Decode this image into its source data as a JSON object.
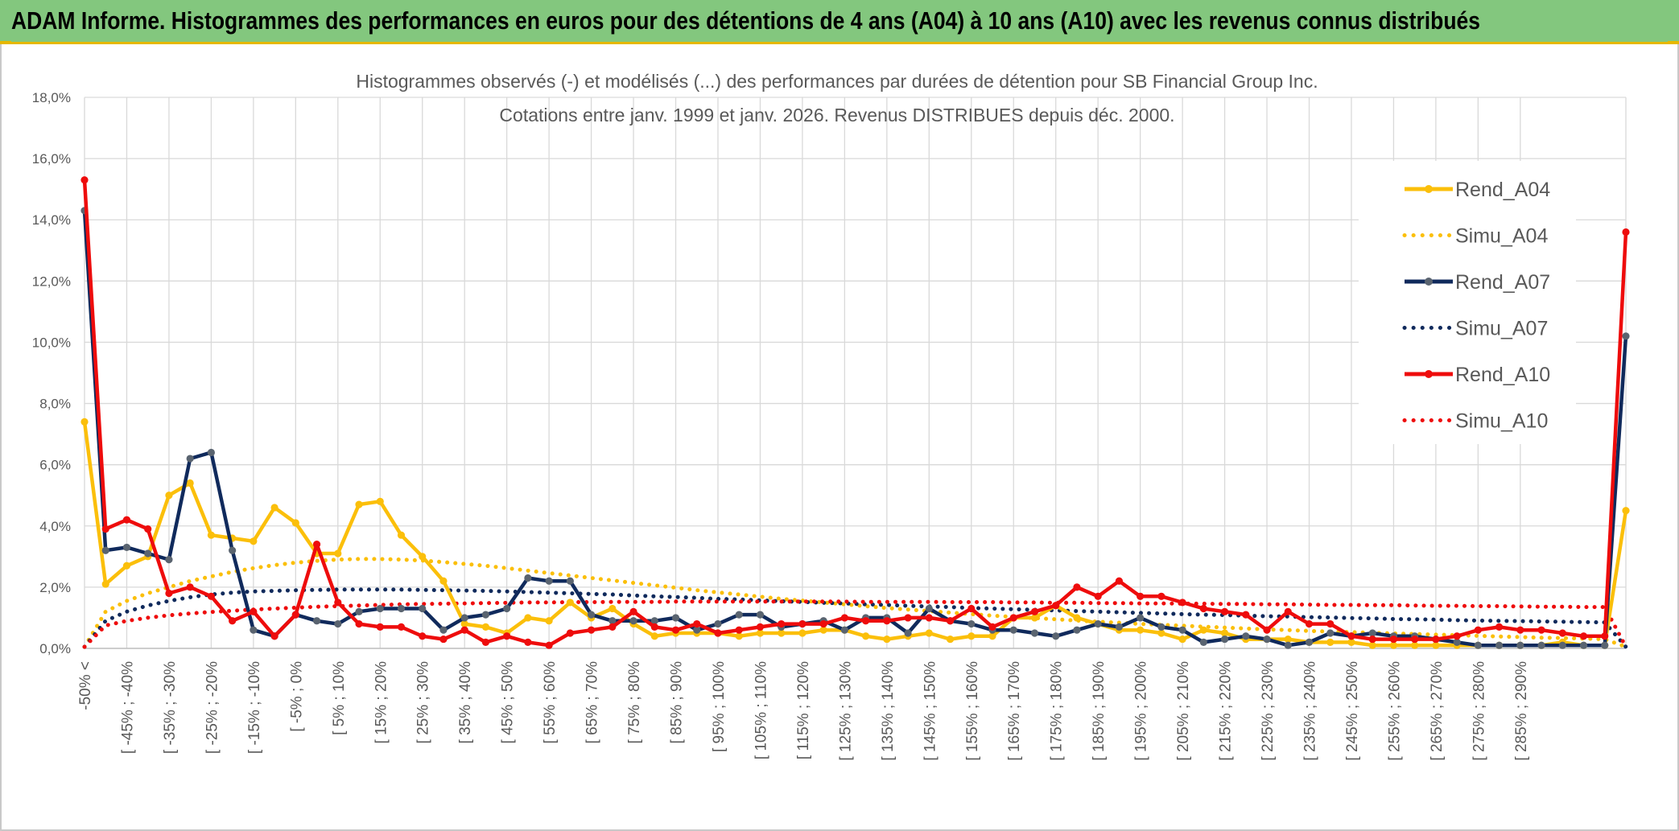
{
  "header": {
    "title": "ADAM Informe. Histogrammes des performances en euros pour des détentions de 4 ans (A04) à 10 ans (A10) avec les revenus connus distribués"
  },
  "colors": {
    "banner": "#83c77e",
    "accent": "#e6b800",
    "A04": "#fbbf0a",
    "A07": "#102a5c",
    "A07_marker": "#5a6470",
    "A10": "#ee0c0c"
  },
  "chart_data": {
    "type": "line",
    "title": "Histogrammes observés (-) et modélisés (...) des performances par durées de détention pour SB Financial Group Inc.",
    "subtitle": "Cotations entre janv. 1999 et janv. 2026. Revenus DISTRIBUES depuis déc. 2000.",
    "xlabel": "",
    "ylabel": "",
    "ylim": [
      0,
      18
    ],
    "yticks": [
      "0,0%",
      "2,0%",
      "4,0%",
      "6,0%",
      "8,0%",
      "10,0%",
      "12,0%",
      "14,0%",
      "16,0%",
      "18,0%"
    ],
    "grid": true,
    "legend_position": "top-right",
    "x_tick_labels": [
      "-50% <",
      "[ -45% ; -40%",
      "[ -35% ; -30%",
      "[ -25% ; -20%",
      "[ -15% ; -10%",
      "[ -5% ; 0%",
      "[ 5% ; 10%",
      "[ 15% ; 20%",
      "[ 25% ; 30%",
      "[ 35% ; 40%",
      "[ 45% ; 50%",
      "[ 55% ; 60%",
      "[ 65% ; 70%",
      "[ 75% ; 80%",
      "[ 85% ; 90%",
      "[ 95% ; 100%",
      "[ 105% ; 110%",
      "[ 115% ; 120%",
      "[ 125% ; 130%",
      "[ 135% ; 140%",
      "[ 145% ; 150%",
      "[ 155% ; 160%",
      "[ 165% ; 170%",
      "[ 175% ; 180%",
      "[ 185% ; 190%",
      "[ 195% ; 200%",
      "[ 205% ; 210%",
      "[ 215% ; 220%",
      "[ 225% ; 230%",
      "[ 235% ; 240%",
      "[ 245% ; 250%",
      "[ 255% ; 260%",
      "[ 265% ; 270%",
      "[ 275% ; 280%",
      "[ 285% ; 290%"
    ],
    "series": [
      {
        "name": "Rend_A04",
        "style": "solid",
        "color": "#fbbf0a",
        "values": [
          7.4,
          2.1,
          2.7,
          3.0,
          5.0,
          5.4,
          3.7,
          3.6,
          3.5,
          4.6,
          4.1,
          3.1,
          3.1,
          4.7,
          4.8,
          3.7,
          3.0,
          2.2,
          0.8,
          0.7,
          0.5,
          1.0,
          0.9,
          1.5,
          1.0,
          1.3,
          0.8,
          0.4,
          0.5,
          0.5,
          0.5,
          0.4,
          0.5,
          0.5,
          0.5,
          0.6,
          0.6,
          0.4,
          0.3,
          0.4,
          0.5,
          0.3,
          0.4,
          0.4,
          1.0,
          1.0,
          1.4,
          1.0,
          0.8,
          0.6,
          0.6,
          0.5,
          0.3,
          0.6,
          0.5,
          0.3,
          0.3,
          0.3,
          0.2,
          0.2,
          0.2,
          0.1,
          0.1,
          0.1,
          0.1,
          0.1,
          0.1,
          0.1,
          0.1,
          0.1,
          0.2,
          0.1,
          0.1,
          4.5
        ]
      },
      {
        "name": "Simu_A04",
        "style": "dotted",
        "color": "#fbbf0a",
        "values": [
          0.05,
          1.2,
          1.55,
          1.8,
          2.0,
          2.2,
          2.35,
          2.5,
          2.62,
          2.72,
          2.8,
          2.86,
          2.9,
          2.92,
          2.92,
          2.9,
          2.87,
          2.82,
          2.76,
          2.7,
          2.62,
          2.54,
          2.46,
          2.38,
          2.3,
          2.22,
          2.14,
          2.06,
          1.98,
          1.9,
          1.83,
          1.76,
          1.69,
          1.62,
          1.56,
          1.5,
          1.44,
          1.38,
          1.32,
          1.27,
          1.22,
          1.17,
          1.12,
          1.07,
          1.03,
          0.99,
          0.95,
          0.91,
          0.87,
          0.84,
          0.8,
          0.77,
          0.74,
          0.71,
          0.68,
          0.65,
          0.62,
          0.6,
          0.57,
          0.55,
          0.53,
          0.51,
          0.49,
          0.47,
          0.45,
          0.43,
          0.41,
          0.39,
          0.37,
          0.35,
          0.34,
          0.32,
          0.3,
          0.05
        ]
      },
      {
        "name": "Rend_A07",
        "style": "solid",
        "color": "#102a5c",
        "values": [
          14.3,
          3.2,
          3.3,
          3.1,
          2.9,
          6.2,
          6.4,
          3.2,
          0.6,
          0.4,
          1.1,
          0.9,
          0.8,
          1.2,
          1.3,
          1.3,
          1.3,
          0.6,
          1.0,
          1.1,
          1.3,
          2.3,
          2.2,
          2.2,
          1.1,
          0.9,
          0.9,
          0.9,
          1.0,
          0.6,
          0.8,
          1.1,
          1.1,
          0.7,
          0.8,
          0.9,
          0.6,
          1.0,
          1.0,
          0.5,
          1.3,
          0.9,
          0.8,
          0.6,
          0.6,
          0.5,
          0.4,
          0.6,
          0.8,
          0.7,
          1.0,
          0.7,
          0.6,
          0.2,
          0.3,
          0.4,
          0.3,
          0.1,
          0.2,
          0.5,
          0.4,
          0.5,
          0.4,
          0.4,
          0.3,
          0.2,
          0.1,
          0.1,
          0.1,
          0.1,
          0.1,
          0.1,
          0.1,
          10.2
        ]
      },
      {
        "name": "Simu_A07",
        "style": "dotted",
        "color": "#102a5c",
        "values": [
          0.05,
          0.9,
          1.2,
          1.4,
          1.55,
          1.67,
          1.76,
          1.82,
          1.86,
          1.88,
          1.9,
          1.91,
          1.92,
          1.92,
          1.92,
          1.92,
          1.91,
          1.9,
          1.89,
          1.88,
          1.86,
          1.84,
          1.82,
          1.8,
          1.78,
          1.76,
          1.73,
          1.7,
          1.68,
          1.65,
          1.62,
          1.6,
          1.57,
          1.54,
          1.52,
          1.49,
          1.47,
          1.44,
          1.42,
          1.39,
          1.37,
          1.35,
          1.32,
          1.3,
          1.28,
          1.26,
          1.24,
          1.22,
          1.2,
          1.18,
          1.16,
          1.14,
          1.12,
          1.1,
          1.09,
          1.07,
          1.05,
          1.04,
          1.02,
          1.01,
          0.99,
          0.98,
          0.96,
          0.95,
          0.94,
          0.92,
          0.91,
          0.9,
          0.89,
          0.88,
          0.87,
          0.86,
          0.85,
          0.05
        ]
      },
      {
        "name": "Rend_A10",
        "style": "solid",
        "color": "#ee0c0c",
        "values": [
          15.3,
          3.9,
          4.2,
          3.9,
          1.8,
          2.0,
          1.7,
          0.9,
          1.2,
          0.4,
          1.1,
          3.4,
          1.5,
          0.8,
          0.7,
          0.7,
          0.4,
          0.3,
          0.6,
          0.2,
          0.4,
          0.2,
          0.1,
          0.5,
          0.6,
          0.7,
          1.2,
          0.7,
          0.6,
          0.8,
          0.5,
          0.6,
          0.7,
          0.8,
          0.8,
          0.8,
          1.0,
          0.9,
          0.9,
          1.0,
          1.0,
          0.9,
          1.3,
          0.7,
          1.0,
          1.2,
          1.4,
          2.0,
          1.7,
          2.2,
          1.7,
          1.7,
          1.5,
          1.3,
          1.2,
          1.1,
          0.6,
          1.2,
          0.8,
          0.8,
          0.4,
          0.3,
          0.3,
          0.3,
          0.3,
          0.4,
          0.6,
          0.7,
          0.6,
          0.6,
          0.5,
          0.4,
          0.4,
          13.6
        ]
      },
      {
        "name": "Simu_A10",
        "style": "dotted",
        "color": "#ee0c0c",
        "values": [
          0.05,
          0.75,
          0.9,
          1.0,
          1.08,
          1.14,
          1.19,
          1.23,
          1.27,
          1.3,
          1.33,
          1.36,
          1.38,
          1.4,
          1.42,
          1.44,
          1.45,
          1.46,
          1.47,
          1.48,
          1.49,
          1.5,
          1.5,
          1.51,
          1.51,
          1.52,
          1.52,
          1.52,
          1.53,
          1.53,
          1.53,
          1.53,
          1.53,
          1.53,
          1.53,
          1.53,
          1.53,
          1.52,
          1.52,
          1.52,
          1.52,
          1.51,
          1.51,
          1.51,
          1.5,
          1.5,
          1.49,
          1.49,
          1.48,
          1.48,
          1.47,
          1.47,
          1.46,
          1.46,
          1.45,
          1.45,
          1.44,
          1.44,
          1.43,
          1.42,
          1.42,
          1.41,
          1.41,
          1.4,
          1.39,
          1.39,
          1.38,
          1.38,
          1.37,
          1.36,
          1.36,
          1.35,
          1.35,
          0.05
        ]
      }
    ]
  }
}
